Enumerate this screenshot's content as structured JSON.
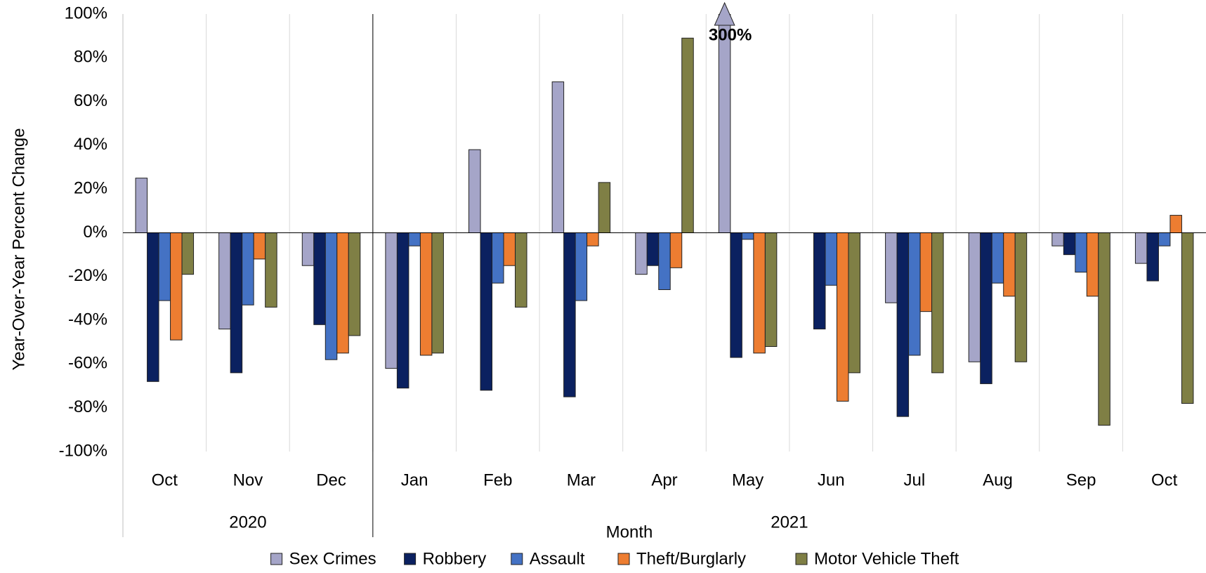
{
  "chart_data": {
    "type": "bar",
    "y_label": "Year-Over-Year Percent Change",
    "x_label": "Month",
    "categories": [
      "Oct",
      "Nov",
      "Dec",
      "Jan",
      "Feb",
      "Mar",
      "Apr",
      "May",
      "Jun",
      "Jul",
      "Aug",
      "Sep",
      "Oct"
    ],
    "groups": [
      {
        "label": "2020",
        "span": 3
      },
      {
        "label": "2021",
        "span": 10
      }
    ],
    "series": [
      {
        "name": "Sex Crimes",
        "color": "#a5a5c8",
        "values": [
          25,
          -44,
          -15,
          -62,
          38,
          69,
          -19,
          300,
          0,
          -32,
          -59,
          -6,
          -14
        ],
        "value_labels": [
          null,
          null,
          null,
          null,
          null,
          null,
          null,
          "300%",
          null,
          null,
          null,
          null,
          null
        ]
      },
      {
        "name": "Robbery",
        "color": "#0b2160",
        "values": [
          -68,
          -64,
          -42,
          -71,
          -72,
          -75,
          -15,
          -57,
          -44,
          -84,
          -69,
          -10,
          -22
        ]
      },
      {
        "name": "Assault",
        "color": "#4472c4",
        "values": [
          -31,
          -33,
          -58,
          -6,
          -23,
          -31,
          -26,
          -3,
          -24,
          -56,
          -23,
          -18,
          -6
        ]
      },
      {
        "name": "Theft/Burglarly",
        "color": "#ed7d31",
        "values": [
          -49,
          -12,
          -55,
          -56,
          -15,
          -6,
          -16,
          -55,
          -77,
          -36,
          -29,
          -29,
          8
        ]
      },
      {
        "name": "Motor Vehicle Theft",
        "color": "#7f7f45",
        "values": [
          -19,
          -34,
          -47,
          -55,
          -34,
          23,
          89,
          -52,
          -64,
          -64,
          -59,
          -88,
          -78
        ]
      }
    ],
    "ylim": [
      -100,
      100
    ],
    "yticks": [
      {
        "value": -100,
        "label": "-100%"
      },
      {
        "value": -80,
        "label": "-80%"
      },
      {
        "value": -60,
        "label": "-60%"
      },
      {
        "value": -40,
        "label": "-40%"
      },
      {
        "value": -20,
        "label": "-20%"
      },
      {
        "value": 0,
        "label": "0%"
      },
      {
        "value": 20,
        "label": "20%"
      },
      {
        "value": 40,
        "label": "40%"
      },
      {
        "value": 60,
        "label": "60%"
      },
      {
        "value": 80,
        "label": "80%"
      },
      {
        "value": 100,
        "label": "100%"
      }
    ],
    "grid": true,
    "legend": "bottom"
  }
}
